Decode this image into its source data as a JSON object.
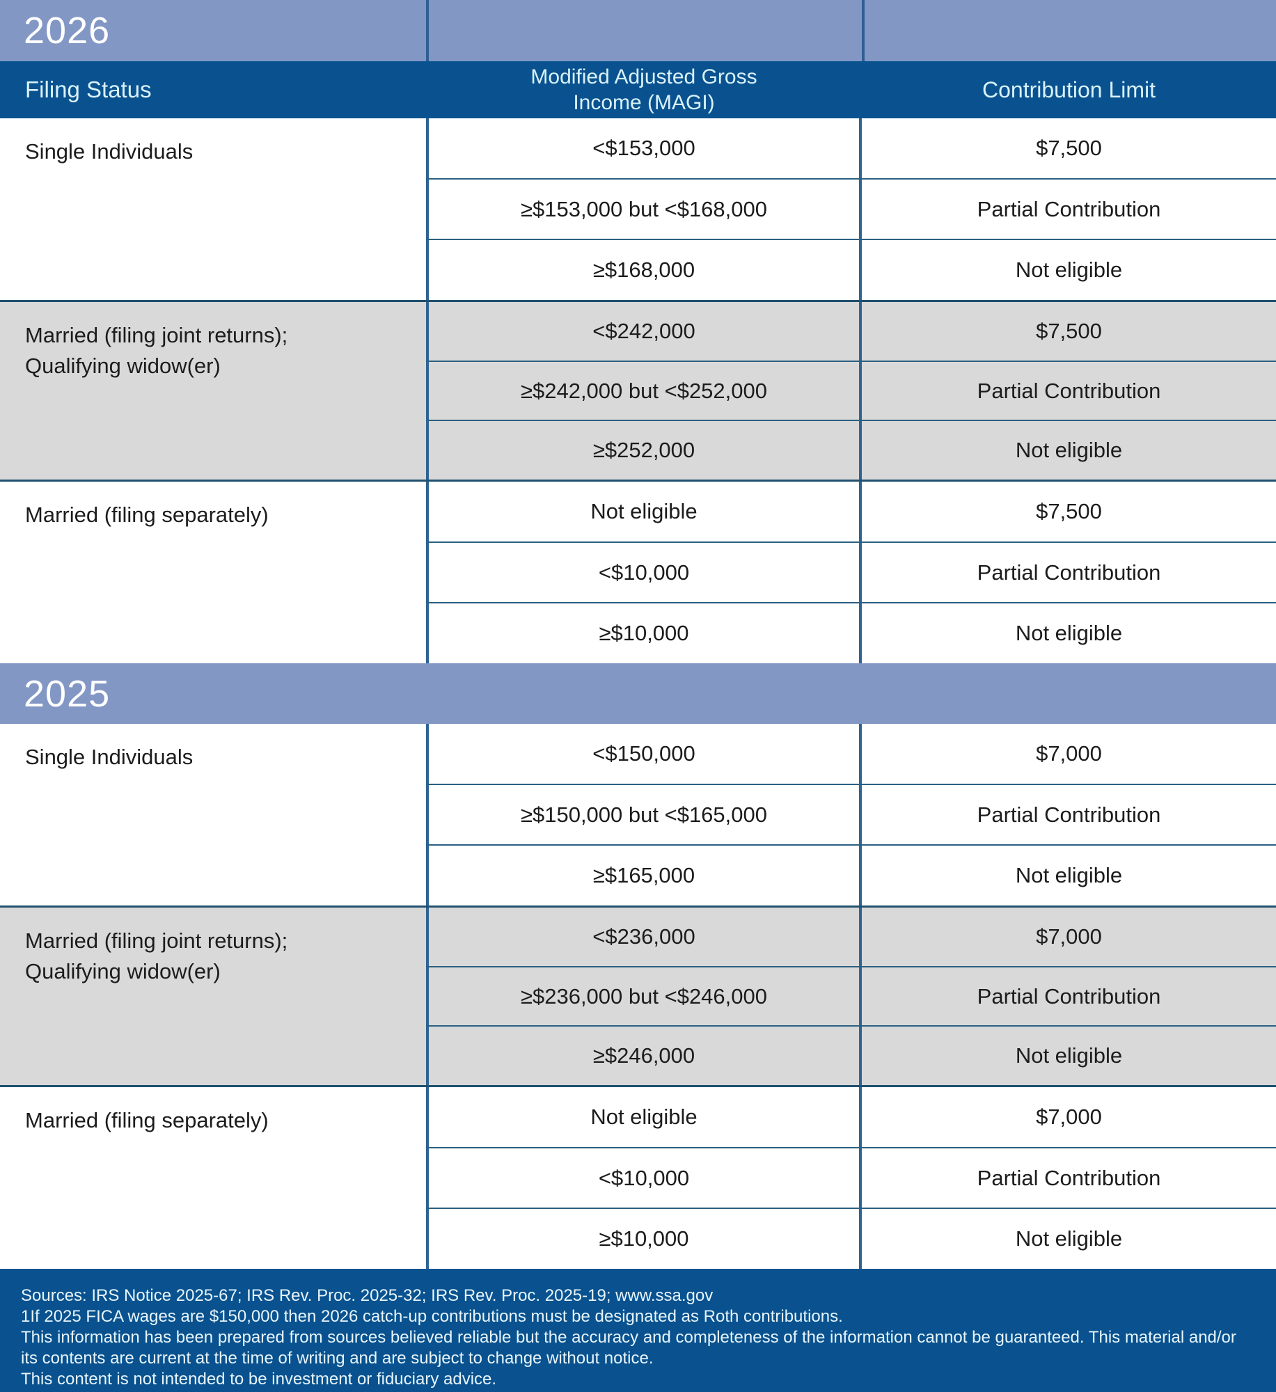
{
  "header": {
    "filing_status": "Filing Status",
    "magi_line1": "Modified Adjusted Gross",
    "magi_line2": "Income (MAGI)",
    "contribution_limit": "Contribution Limit"
  },
  "colors": {
    "year_band": "#8397c5",
    "header_footer_blue": "#09528f",
    "shaded_row_gray": "#d9d9d9",
    "grid_line_blue": "#2f6492",
    "header_text": "#d9f1f9"
  },
  "sections": [
    {
      "year": "2026",
      "groups": [
        {
          "label": "Single Individuals",
          "label2": "",
          "rows": [
            [
              "<$153,000",
              "$7,500"
            ],
            [
              "≥$153,000 but <$168,000",
              "Partial Contribution"
            ],
            [
              "≥$168,000",
              "Not eligible"
            ]
          ]
        },
        {
          "label": "Married (filing joint returns);",
          "label2": "Qualifying widow(er)",
          "rows": [
            [
              "<$242,000",
              "$7,500"
            ],
            [
              "≥$242,000 but <$252,000",
              "Partial Contribution"
            ],
            [
              "≥$252,000",
              "Not eligible"
            ]
          ]
        },
        {
          "label": "Married (filing separately)",
          "label2": "",
          "rows": [
            [
              "Not eligible",
              "$7,500"
            ],
            [
              "<$10,000",
              "Partial Contribution"
            ],
            [
              "≥$10,000",
              "Not eligible"
            ]
          ]
        }
      ]
    },
    {
      "year": "2025",
      "groups": [
        {
          "label": "Single Individuals",
          "label2": "",
          "rows": [
            [
              "<$150,000",
              "$7,000"
            ],
            [
              "≥$150,000 but <$165,000",
              "Partial Contribution"
            ],
            [
              "≥$165,000",
              "Not eligible"
            ]
          ]
        },
        {
          "label": "Married (filing joint returns);",
          "label2": "Qualifying widow(er)",
          "rows": [
            [
              "<$236,000",
              "$7,000"
            ],
            [
              "≥$236,000 but <$246,000",
              "Partial Contribution"
            ],
            [
              "≥$246,000",
              "Not eligible"
            ]
          ]
        },
        {
          "label": "Married (filing separately)",
          "label2": "",
          "rows": [
            [
              "Not eligible",
              "$7,000"
            ],
            [
              "<$10,000",
              "Partial Contribution"
            ],
            [
              "≥$10,000",
              "Not eligible"
            ]
          ]
        }
      ]
    }
  ],
  "footer": {
    "lines": [
      "Sources: IRS Notice 2025-67; IRS Rev. Proc. 2025-32; IRS Rev. Proc. 2025-19; www.ssa.gov",
      "1If 2025 FICA wages are $150,000 then 2026 catch-up contributions must be designated as Roth contributions.",
      "This information has been prepared from sources believed reliable but the accuracy and completeness of the information cannot be guaranteed. This material and/or",
      "its contents are current at the time of writing and are subject to change without notice.",
      "This content is not intended to be investment or fiduciary advice."
    ]
  }
}
